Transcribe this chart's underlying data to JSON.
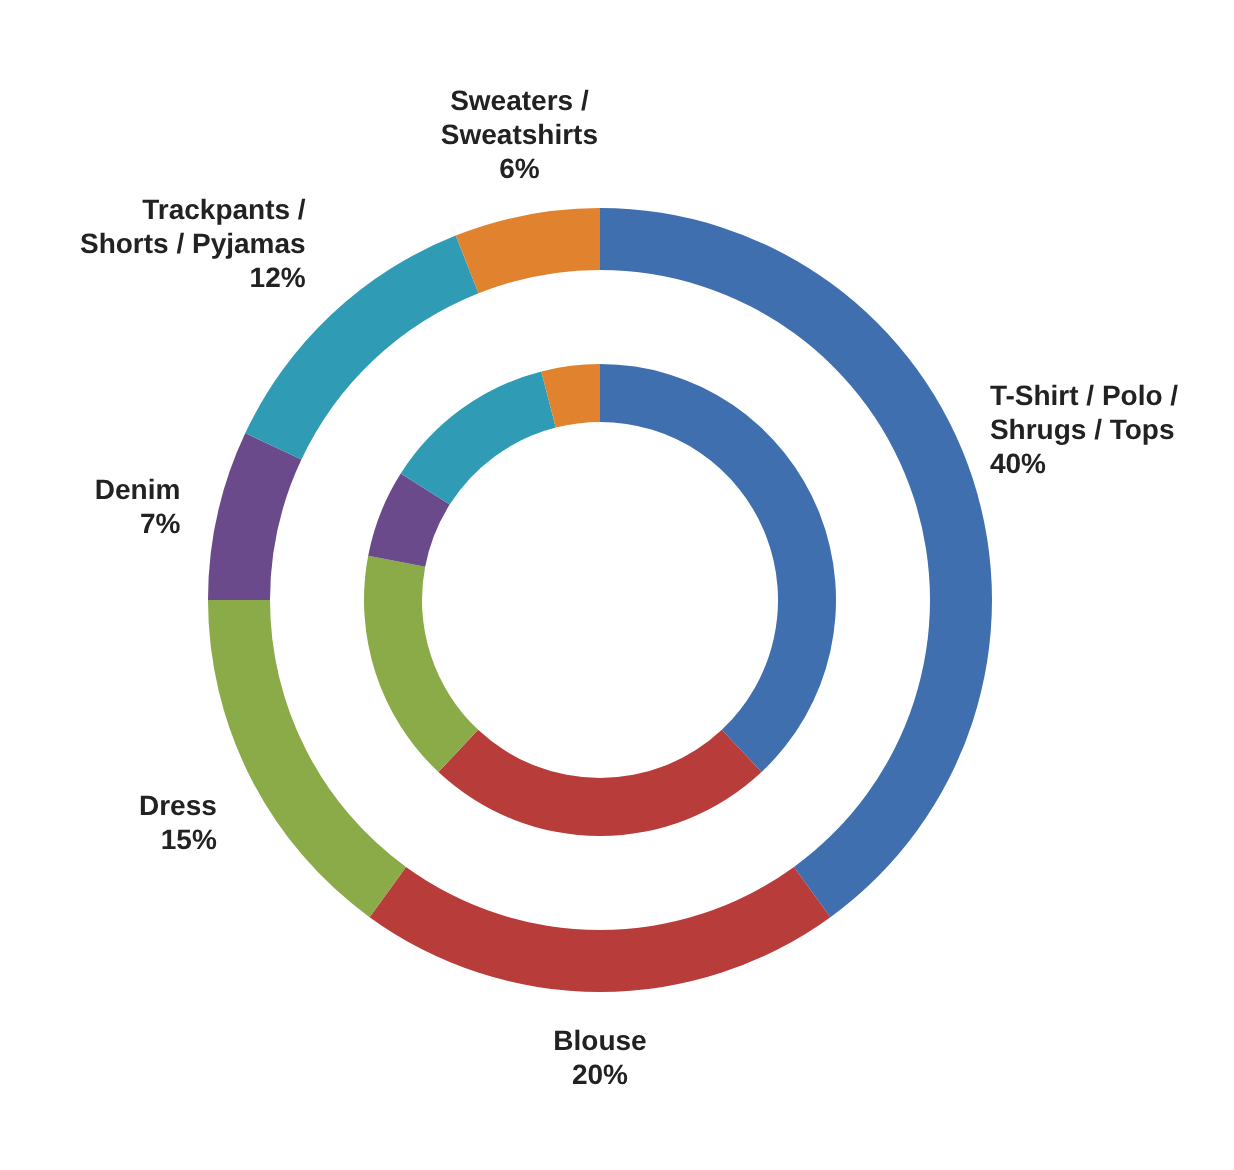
{
  "chart_data": {
    "type": "donut",
    "categories": [
      "T-Shirt / Polo / Shrugs / Tops",
      "Blouse",
      "Dress",
      "Denim",
      "Trackpants / Shorts / Pyjamas",
      "Sweaters / Sweatshirts"
    ],
    "colors": [
      "#3f6fae",
      "#b83c3a",
      "#8aab47",
      "#6a4a8a",
      "#2f9bb5",
      "#e0822e"
    ],
    "series": [
      {
        "values": [
          40,
          20,
          15,
          7,
          12,
          6
        ],
        "value_labels": [
          "40%",
          "20%",
          "15%",
          "7%",
          "12%",
          "6%"
        ]
      },
      {
        "values": [
          38,
          24,
          16,
          6,
          12,
          4
        ]
      }
    ]
  }
}
